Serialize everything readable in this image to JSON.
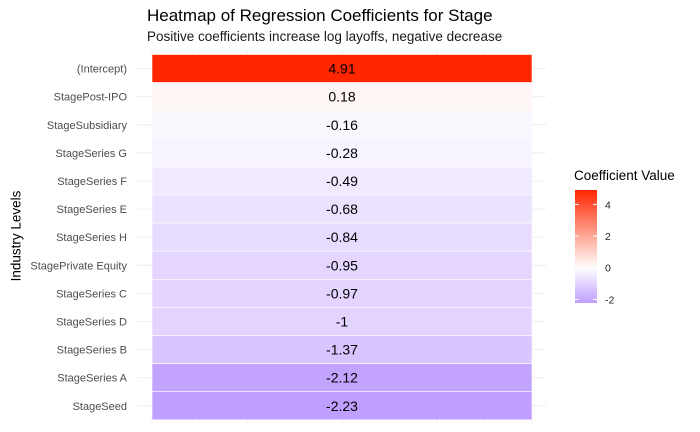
{
  "chart_data": {
    "type": "heatmap",
    "title": "Heatmap of Regression Coefficients for Stage",
    "subtitle": "Positive coefficients increase log layoffs, negative decrease",
    "ylabel": "Industry Levels",
    "xlabel": "",
    "rows": [
      "(Intercept)",
      "StagePost-IPO",
      "StageSubsidiary",
      "StageSeries G",
      "StageSeries F",
      "StageSeries E",
      "StageSeries H",
      "StagePrivate Equity",
      "StageSeries C",
      "StageSeries D",
      "StageSeries B",
      "StageSeries A",
      "StageSeed"
    ],
    "values": [
      4.91,
      0.18,
      -0.16,
      -0.28,
      -0.49,
      -0.68,
      -0.84,
      -0.95,
      -0.97,
      -1,
      -1.37,
      -2.12,
      -2.23
    ],
    "value_labels": [
      "4.91",
      "0.18",
      "-0.16",
      "-0.28",
      "-0.49",
      "-0.68",
      "-0.84",
      "-0.95",
      "-0.97",
      "-1",
      "-1.37",
      "-2.12",
      "-2.23"
    ],
    "legend": {
      "title": "Coefficient Value",
      "range": [
        -2.23,
        4.91
      ],
      "ticks": [
        -2,
        0,
        2,
        4
      ],
      "tick_labels": [
        "-2",
        "0",
        "2",
        "4"
      ],
      "low_color": "#bf9fff",
      "mid_color": "#ffffff",
      "high_color": "#ff2600",
      "midpoint": 0,
      "placement": "right"
    },
    "grid": true,
    "background": "#ffffff"
  }
}
